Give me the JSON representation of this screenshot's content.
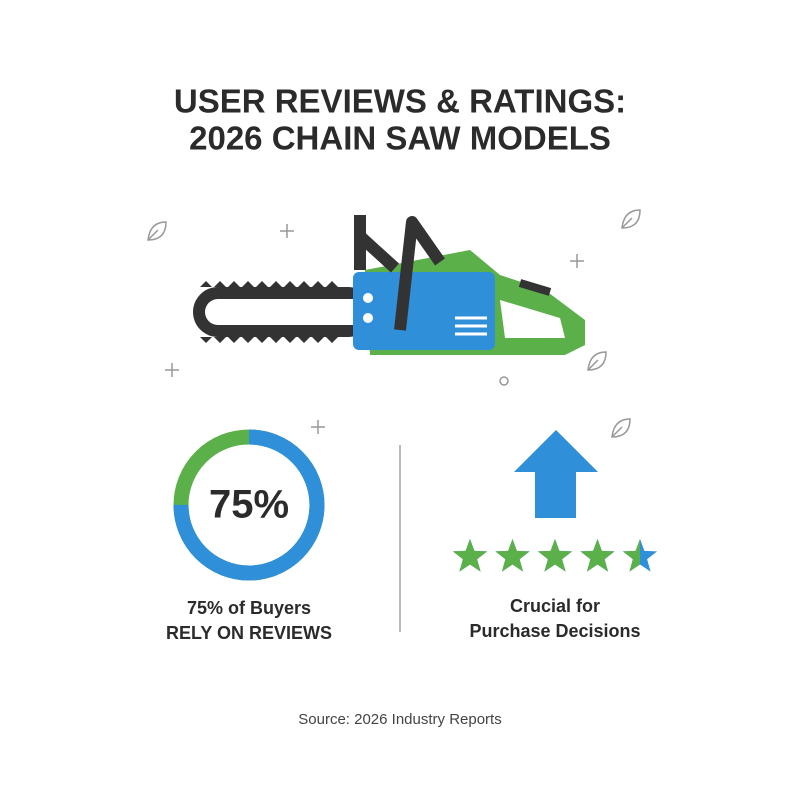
{
  "title": [
    "USER REVIEWS & RATINGS:",
    "2026 CHAIN SAW MODELS"
  ],
  "stat": {
    "value": 75,
    "label": "75%",
    "caption": [
      "75% of Buyers",
      "RELY ON REVIEWS"
    ]
  },
  "rating": {
    "value": 4.5,
    "max": 5,
    "caption": [
      "Crucial for",
      "Purchase Decisions"
    ]
  },
  "source": "Source: 2026 Industry Reports"
}
